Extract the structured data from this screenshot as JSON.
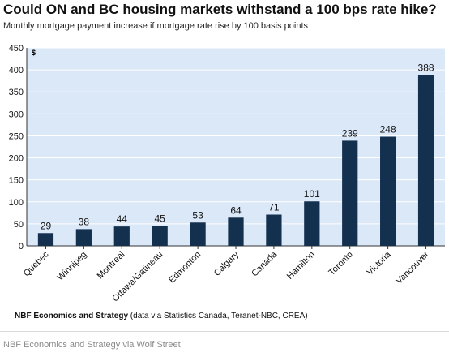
{
  "title": "Could ON and BC housing markets withstand a 100 bps rate hike?",
  "subtitle": "Monthly mortgage payment increase if mortgage rate rise by 100 basis points",
  "source_bold": "NBF Economics and Strategy",
  "source_rest": " (data via Statistics Canada, Teranet-NBC, CREA)",
  "footer": "NBF Economics and Strategy via Wolf Street",
  "colors": {
    "bar": "#14304f",
    "plot_bg": "#dbe8f8",
    "grid": "#ffffff"
  },
  "chart_data": {
    "type": "bar",
    "categories": [
      "Quebec",
      "Winnipeg",
      "Montreal",
      "Ottawa/Gatineau",
      "Edmonton",
      "Calgary",
      "Canada",
      "Hamilton",
      "Toronto",
      "Victoria",
      "Vancouver"
    ],
    "values": [
      29,
      38,
      44,
      45,
      53,
      64,
      71,
      101,
      239,
      248,
      388
    ],
    "unit_label": "$",
    "ylim": [
      0,
      450
    ],
    "yticks": [
      0,
      50,
      100,
      150,
      200,
      250,
      300,
      350,
      400,
      450
    ],
    "grid": true,
    "data_labels": true
  }
}
